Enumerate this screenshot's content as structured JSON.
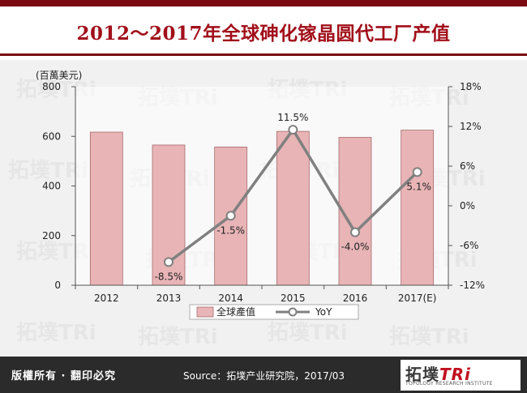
{
  "title": "2012～2017年全球砷化镓晶圆代工厂产值",
  "footer": {
    "rights": "版權所有 · 翻印必究",
    "source": "Source：拓墣产业研究院，2017/03",
    "logo_text": "拓墣TRi",
    "logo_subtext": "TOPOLOGY RESEARCH INSTITUTE"
  },
  "watermark_text": "拓墣TRi",
  "chart_data": {
    "type": "bar",
    "categories": [
      "2012",
      "2013",
      "2014",
      "2015",
      "2016",
      "2017(E)"
    ],
    "unit_label": "(百萬美元)",
    "ylim": [
      0,
      800
    ],
    "yticks": [
      "0",
      "200",
      "400",
      "600",
      "800"
    ],
    "y2lim": [
      -12,
      18
    ],
    "y2ticks": [
      "-12%",
      "-6%",
      "0%",
      "6%",
      "12%",
      "18%"
    ],
    "grid": false,
    "legend_position": "bottom",
    "series": [
      {
        "name": "全球產值",
        "type": "bar",
        "values": [
          617,
          565,
          557,
          620,
          596,
          625
        ],
        "color": "#e8b4b6",
        "stroke": "#a86a6d"
      },
      {
        "name": "YoY",
        "type": "line",
        "axis": "secondary",
        "values": [
          null,
          -8.5,
          -1.5,
          11.5,
          -4.0,
          5.1
        ],
        "labels": [
          "",
          "-8.5%",
          "-1.5%",
          "11.5%",
          "-4.0%",
          "5.1%"
        ],
        "color": "#808080"
      }
    ]
  }
}
